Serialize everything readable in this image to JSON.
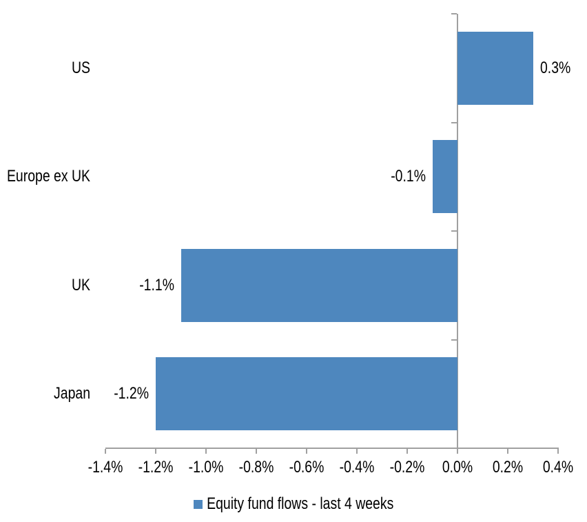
{
  "chart_data": {
    "type": "bar",
    "orientation": "horizontal",
    "categories": [
      "US",
      "Europe ex UK",
      "UK",
      "Japan"
    ],
    "values": [
      0.3,
      -0.1,
      -1.1,
      -1.2
    ],
    "data_labels": [
      "0.3%",
      "-0.1%",
      "-1.1%",
      "-1.2%"
    ],
    "series": [
      {
        "name": "Equity fund flows - last 4 weeks",
        "values": [
          0.3,
          -0.1,
          -1.1,
          -1.2
        ]
      }
    ],
    "title": "",
    "xlabel": "",
    "ylabel": "",
    "xlim": [
      -1.4,
      0.4
    ],
    "x_tick_labels": [
      "-1.4%",
      "-1.2%",
      "-1.0%",
      "-0.8%",
      "-0.6%",
      "-0.4%",
      "-0.2%",
      "0.0%",
      "0.2%",
      "0.4%"
    ],
    "x_tick_values": [
      -1.4,
      -1.2,
      -1.0,
      -0.8,
      -0.6,
      -0.4,
      -0.2,
      0.0,
      0.2,
      0.4
    ],
    "grid": false,
    "legend": {
      "label": "Equity fund flows - last 4 weeks",
      "position": "bottom"
    },
    "colors": {
      "bar": "#4E87BE",
      "axis": "#A0A0A0",
      "text": "#000000",
      "background": "#FFFFFF"
    }
  }
}
